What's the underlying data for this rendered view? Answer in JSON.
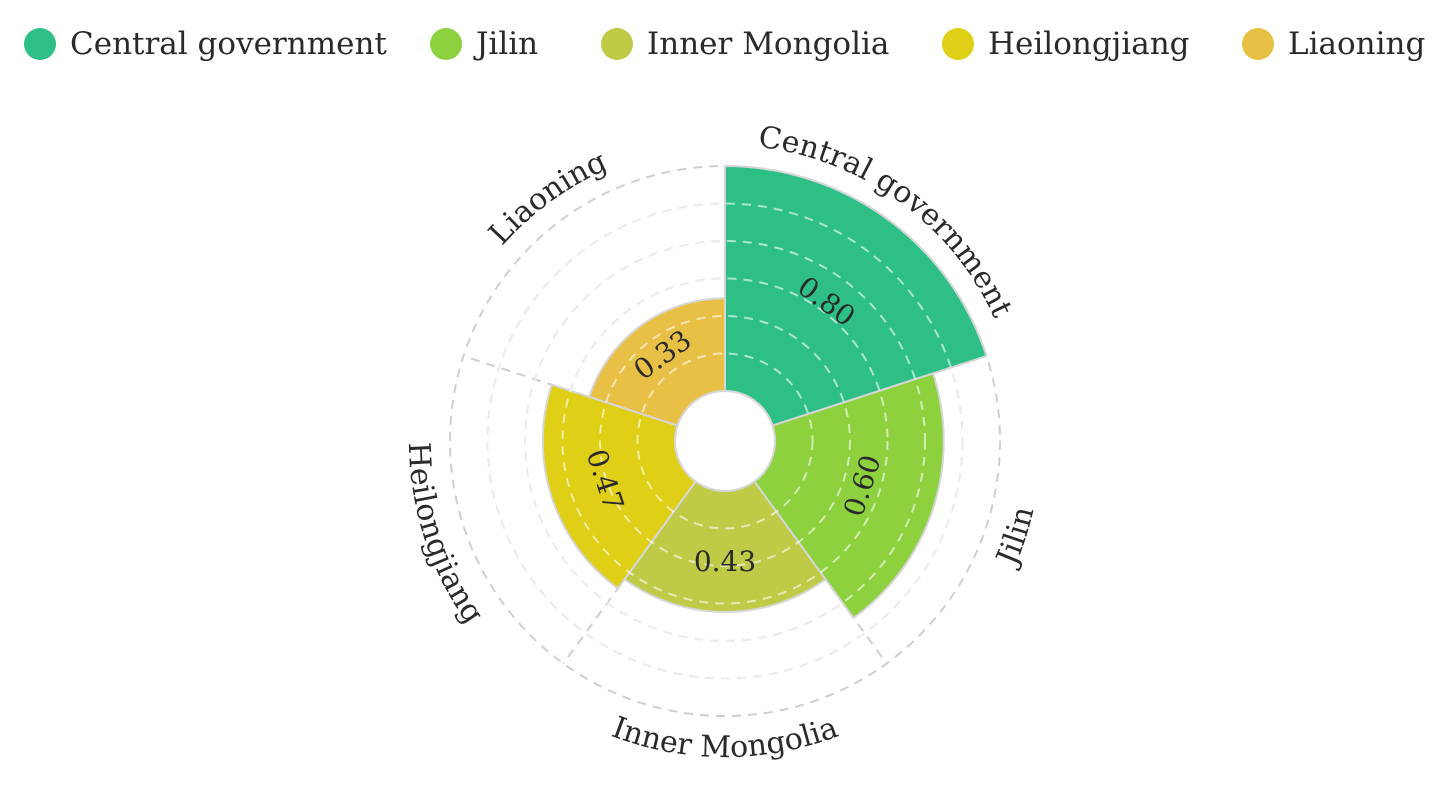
{
  "chart_data": {
    "type": "nightingale-rose",
    "categories": [
      "Central government",
      "Jilin",
      "Inner Mongolia",
      "Heilongjiang",
      "Liaoning"
    ],
    "values": [
      0.8,
      0.6,
      0.43,
      0.47,
      0.33
    ],
    "value_labels": [
      "0.80",
      "0.60",
      "0.43",
      "0.47",
      "0.33"
    ],
    "colors": [
      "#2ebf87",
      "#8dd13f",
      "#bfcb47",
      "#dfcf17",
      "#e9c046"
    ],
    "rlim": [
      0,
      0.8
    ],
    "grid": true,
    "legend_position": "top"
  }
}
